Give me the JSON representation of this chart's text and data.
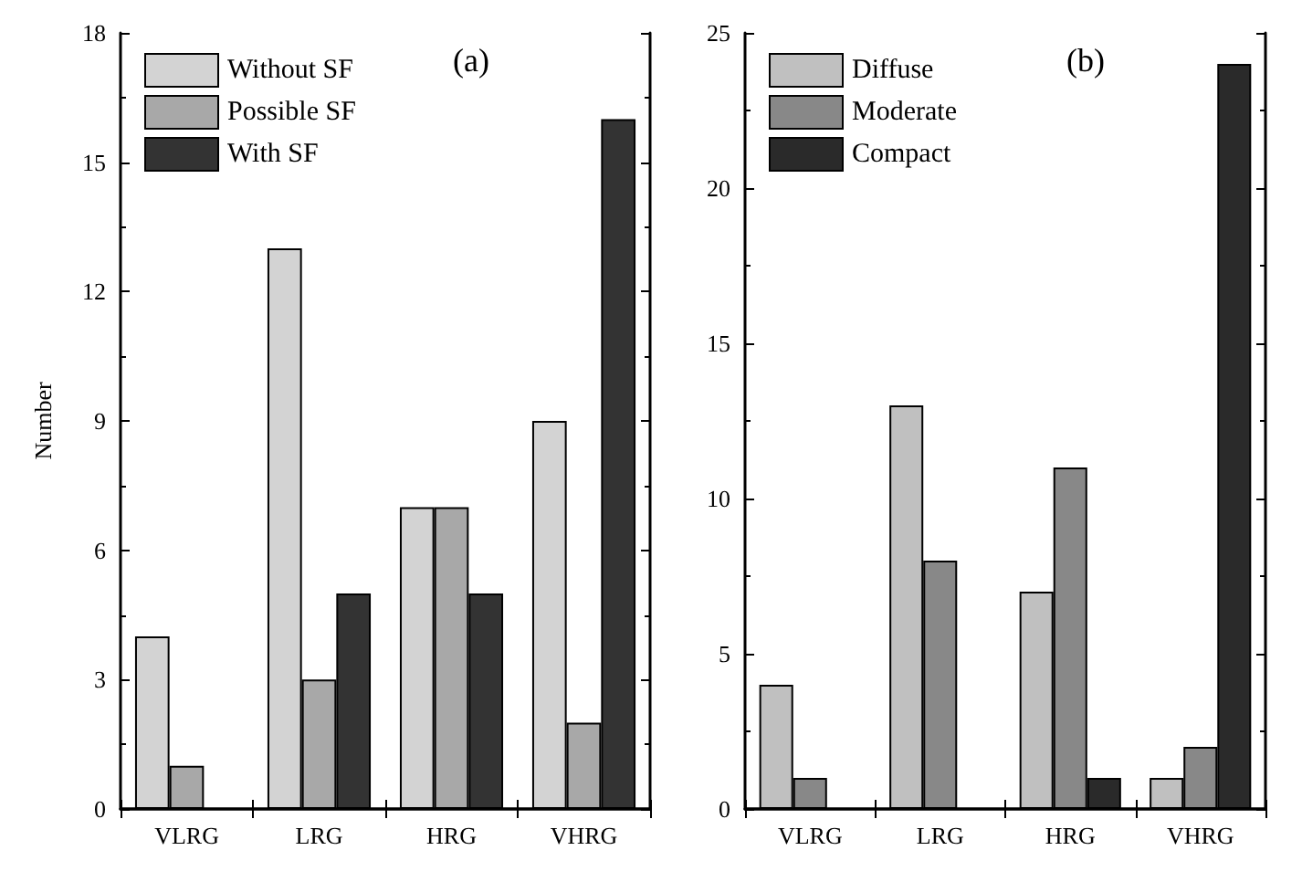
{
  "chart_data": [
    {
      "type": "bar",
      "ylabel": "Number",
      "annotations": [
        "(a)"
      ],
      "categories": [
        "VLRG",
        "LRG",
        "HRG",
        "VHRG"
      ],
      "series": [
        {
          "name": "Without SF",
          "color": "#d3d3d3",
          "values": [
            4,
            13,
            7,
            9
          ]
        },
        {
          "name": "Possible SF",
          "color": "#a8a8a8",
          "values": [
            1,
            3,
            7,
            2
          ]
        },
        {
          "name": "With SF",
          "color": "#333333",
          "values": [
            null,
            5,
            5,
            16
          ]
        }
      ],
      "ylim": [
        0,
        18
      ],
      "yticks": [
        0,
        3,
        6,
        9,
        12,
        15,
        18
      ],
      "grid": false,
      "legend": "top left"
    },
    {
      "type": "bar",
      "annotations": [
        "(b)"
      ],
      "categories": [
        "VLRG",
        "LRG",
        "HRG",
        "VHRG"
      ],
      "series": [
        {
          "name": "Diffuse",
          "color": "#c0c0c0",
          "values": [
            4,
            13,
            7,
            1
          ]
        },
        {
          "name": "Moderate",
          "color": "#888888",
          "values": [
            1,
            8,
            11,
            2
          ]
        },
        {
          "name": "Compact",
          "color": "#2a2a2a",
          "values": [
            null,
            null,
            1,
            24
          ]
        }
      ],
      "ylim": [
        0,
        25
      ],
      "yticks": [
        0,
        5,
        10,
        15,
        20,
        25
      ],
      "grid": false,
      "legend": "top left"
    }
  ]
}
